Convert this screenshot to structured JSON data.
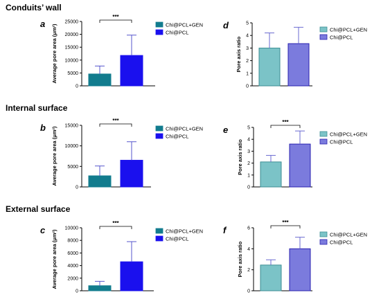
{
  "sections": {
    "conduits_wall": "Conduits’ wall",
    "internal_surface": "Internal surface",
    "external_surface": "External surface"
  },
  "colors": {
    "gen_area": "#127C8E",
    "pcl_area": "#1A10EE",
    "gen_ratio": "#7BC3C7",
    "pcl_ratio": "#7B7BDD",
    "gen_ratio_edge": "#3D8E93",
    "pcl_ratio_edge": "#2A22B0",
    "whisker_area": "#5555cc",
    "whisker_ratio": "#6a6ad0"
  },
  "chart_data": [
    {
      "panel": "a",
      "type": "bar",
      "ylabel": "Average pore area (μm²)",
      "ylim": [
        0,
        25000
      ],
      "yticks": [
        0,
        5000,
        10000,
        15000,
        20000,
        25000
      ],
      "series": [
        {
          "name": "Chi@PCL+GEN",
          "value": 4600,
          "error": 3100
        },
        {
          "name": "Chi@PCL",
          "value": 11800,
          "error": 7900
        }
      ],
      "significance": "***",
      "legend": [
        "Chi@PCL+GEN",
        "Chi@PCL"
      ]
    },
    {
      "panel": "d",
      "type": "bar",
      "ylabel": "Pore axis ratio",
      "ylim": [
        0,
        5
      ],
      "yticks": [
        0,
        1,
        2,
        3,
        4,
        5
      ],
      "series": [
        {
          "name": "Chi@PCL+GEN",
          "value": 3.0,
          "error": 1.2
        },
        {
          "name": "Chi@PCL",
          "value": 3.35,
          "error": 1.3
        }
      ],
      "significance": "",
      "legend": [
        "Chi@PCL+GEN",
        "Chi@PCL"
      ]
    },
    {
      "panel": "b",
      "type": "bar",
      "ylabel": "Average pore area (μm²)",
      "ylim": [
        0,
        15000
      ],
      "yticks": [
        0,
        5000,
        10000,
        15000
      ],
      "series": [
        {
          "name": "Chi@PCL+GEN",
          "value": 2700,
          "error": 2400
        },
        {
          "name": "Chi@PCL",
          "value": 6500,
          "error": 4500
        }
      ],
      "significance": "***",
      "legend": [
        "Chi@PCL+GEN",
        "Chi@PCL"
      ]
    },
    {
      "panel": "e",
      "type": "bar",
      "ylabel": "Pore axis ratio",
      "ylim": [
        0,
        5
      ],
      "yticks": [
        0,
        1,
        2,
        3,
        4,
        5
      ],
      "series": [
        {
          "name": "Chi@PCL+GEN",
          "value": 2.1,
          "error": 0.55
        },
        {
          "name": "Chi@PCL",
          "value": 3.6,
          "error": 1.1
        }
      ],
      "significance": "***",
      "legend": [
        "Chi@PCL+GEN",
        "Chi@PCL"
      ]
    },
    {
      "panel": "c",
      "type": "bar",
      "ylabel": "Average pore area (μm²)",
      "ylim": [
        0,
        10000
      ],
      "yticks": [
        0,
        2000,
        4000,
        6000,
        8000,
        10000
      ],
      "series": [
        {
          "name": "Chi@PCL+GEN",
          "value": 800,
          "error": 700
        },
        {
          "name": "Chi@PCL",
          "value": 4600,
          "error": 3200
        }
      ],
      "significance": "***",
      "legend": [
        "Chi@PCL+GEN",
        "Chi@PCL"
      ]
    },
    {
      "panel": "f",
      "type": "bar",
      "ylabel": "Pore axis ratio",
      "ylim": [
        0,
        6
      ],
      "yticks": [
        0,
        2,
        4,
        6
      ],
      "series": [
        {
          "name": "Chi@PCL+GEN",
          "value": 2.45,
          "error": 0.5
        },
        {
          "name": "Chi@PCL",
          "value": 4.0,
          "error": 1.1
        }
      ],
      "significance": "***",
      "legend": [
        "Chi@PCL+GEN",
        "Chi@PCL"
      ]
    }
  ]
}
